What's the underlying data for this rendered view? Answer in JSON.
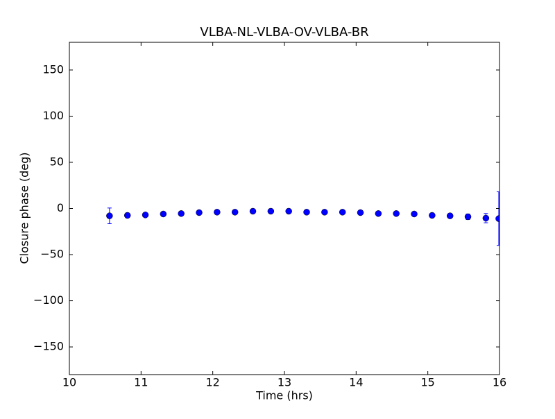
{
  "chart_data": {
    "type": "errorbar",
    "title": "VLBA-NL-VLBA-OV-VLBA-BR",
    "x_label": "Time (hrs)",
    "y_label": "Closure phase (deg)",
    "color": "#0000ff",
    "x": [
      10.56,
      10.81,
      11.06,
      11.31,
      11.56,
      11.81,
      12.06,
      12.31,
      12.56,
      12.81,
      13.06,
      13.31,
      13.56,
      13.81,
      14.06,
      14.31,
      14.56,
      14.81,
      15.06,
      15.31,
      15.56,
      15.81,
      15.99
    ],
    "values": [
      -8,
      -7.5,
      -7,
      -6,
      -5.5,
      -4.5,
      -4,
      -4,
      -3,
      -3,
      -3,
      -4,
      -4,
      -4,
      -4.5,
      -5.5,
      -5.5,
      -6,
      -7.5,
      -8,
      -9,
      -10.5,
      -11
    ],
    "errors": [
      8.5,
      2.5,
      2,
      2,
      2,
      2,
      2,
      2,
      2,
      2,
      2,
      2,
      2,
      2,
      2,
      2,
      2,
      2,
      2,
      2.5,
      3,
      5,
      29
    ],
    "xlim": [
      10,
      16
    ],
    "xticks": [
      10,
      11,
      12,
      13,
      14,
      15,
      16
    ],
    "ylim": [
      -180,
      180
    ],
    "yticks": [
      {
        "value": -150,
        "label": "−150"
      },
      {
        "value": -100,
        "label": "−100"
      },
      {
        "value": -50,
        "label": "−50"
      },
      0,
      50,
      100,
      150
    ]
  }
}
